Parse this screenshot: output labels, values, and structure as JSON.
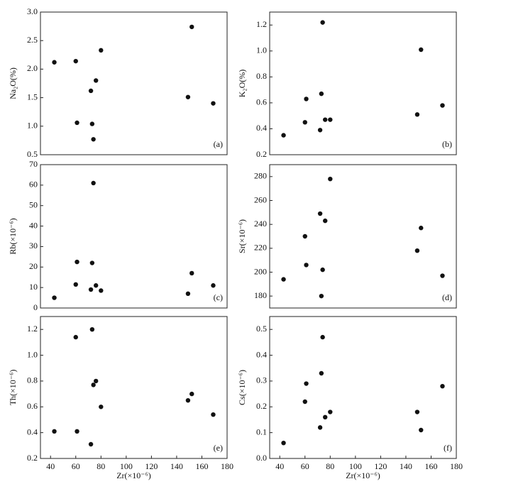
{
  "chart_data": [
    {
      "type": "scatter",
      "ylabel": "Na₂O(%)",
      "annotation": "(a)",
      "color": "#111111",
      "x": [
        43,
        60,
        61,
        72,
        73,
        74,
        76,
        80,
        149,
        152,
        169
      ],
      "values": [
        2.12,
        2.14,
        1.06,
        1.62,
        1.04,
        0.77,
        1.8,
        2.33,
        1.51,
        2.74,
        1.4
      ],
      "xlim": [
        32,
        180
      ],
      "ylim": [
        0.5,
        3.0
      ],
      "yticks": [
        0.5,
        {
          "value": 1,
          "label": "1.0"
        },
        1.5,
        {
          "value": 2,
          "label": "2.0"
        },
        2.5,
        {
          "value": 3,
          "label": "3.0"
        }
      ]
    },
    {
      "type": "scatter",
      "ylabel": "K₂O(%)",
      "annotation": "(b)",
      "color": "#111111",
      "x": [
        43,
        60,
        61,
        72,
        73,
        74,
        76,
        80,
        149,
        152,
        169
      ],
      "values": [
        0.35,
        0.45,
        0.63,
        0.39,
        0.67,
        1.22,
        0.47,
        0.47,
        0.51,
        1.01,
        0.58
      ],
      "xlim": [
        32,
        180
      ],
      "ylim": [
        0.2,
        1.3
      ],
      "yticks": [
        0.2,
        0.4,
        0.6,
        0.8,
        {
          "value": 1,
          "label": "1.0"
        },
        1.2
      ]
    },
    {
      "type": "scatter",
      "ylabel": "Rb(×10⁻⁶)",
      "annotation": "(c)",
      "color": "#111111",
      "x": [
        43,
        60,
        61,
        72,
        73,
        74,
        76,
        80,
        149,
        152,
        169
      ],
      "values": [
        5,
        11.5,
        22.5,
        9,
        22,
        61,
        11,
        8.5,
        7,
        17,
        11
      ],
      "xlim": [
        32,
        180
      ],
      "ylim": [
        0,
        70
      ],
      "yticks": [
        0,
        10,
        20,
        30,
        40,
        50,
        60,
        70
      ]
    },
    {
      "type": "scatter",
      "ylabel": "Sr(×10⁻⁶)",
      "annotation": "(d)",
      "color": "#111111",
      "x": [
        43,
        60,
        61,
        72,
        73,
        74,
        76,
        80,
        149,
        152,
        169
      ],
      "values": [
        194,
        230,
        206,
        249,
        180,
        202,
        243,
        278,
        218,
        237,
        197
      ],
      "xlim": [
        32,
        180
      ],
      "ylim": [
        170,
        290
      ],
      "yticks": [
        180,
        200,
        220,
        240,
        260,
        280
      ]
    },
    {
      "type": "scatter",
      "ylabel": "Th(×10⁻⁶)",
      "xlabel": "Zr(×10⁻⁶)",
      "annotation": "(e)",
      "color": "#111111",
      "x": [
        43,
        60,
        61,
        72,
        73,
        74,
        76,
        80,
        149,
        152,
        169
      ],
      "values": [
        0.41,
        1.14,
        0.41,
        0.31,
        1.2,
        0.77,
        0.8,
        0.6,
        0.65,
        0.7,
        0.54
      ],
      "xlim": [
        32,
        180
      ],
      "ylim": [
        0.2,
        1.3
      ],
      "xticks": [
        40,
        60,
        80,
        100,
        120,
        140,
        160,
        180
      ],
      "yticks": [
        0.2,
        0.4,
        0.6,
        0.8,
        {
          "value": 1,
          "label": "1.0"
        },
        1.2
      ]
    },
    {
      "type": "scatter",
      "ylabel": "Cs(×10⁻⁶)",
      "xlabel": "Zr(×10⁻⁶)",
      "annotation": "(f)",
      "color": "#111111",
      "x": [
        43,
        60,
        61,
        72,
        73,
        74,
        76,
        80,
        149,
        152,
        169
      ],
      "values": [
        0.06,
        0.22,
        0.29,
        0.12,
        0.33,
        0.47,
        0.16,
        0.18,
        0.18,
        0.11,
        0.28
      ],
      "xlim": [
        32,
        180
      ],
      "ylim": [
        0,
        0.55
      ],
      "xticks": [
        40,
        60,
        80,
        100,
        120,
        140,
        160,
        180
      ],
      "yticks": [
        {
          "value": 0,
          "label": "0.0"
        },
        0.1,
        0.2,
        0.3,
        0.4,
        0.5
      ]
    }
  ]
}
